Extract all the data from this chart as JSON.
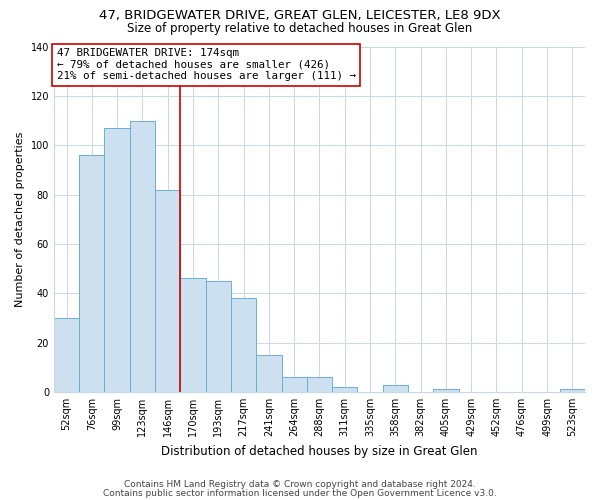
{
  "title": "47, BRIDGEWATER DRIVE, GREAT GLEN, LEICESTER, LE8 9DX",
  "subtitle": "Size of property relative to detached houses in Great Glen",
  "xlabel": "Distribution of detached houses by size in Great Glen",
  "ylabel": "Number of detached properties",
  "bar_labels": [
    "52sqm",
    "76sqm",
    "99sqm",
    "123sqm",
    "146sqm",
    "170sqm",
    "193sqm",
    "217sqm",
    "241sqm",
    "264sqm",
    "288sqm",
    "311sqm",
    "335sqm",
    "358sqm",
    "382sqm",
    "405sqm",
    "429sqm",
    "452sqm",
    "476sqm",
    "499sqm",
    "523sqm"
  ],
  "bar_values": [
    30,
    96,
    107,
    110,
    82,
    46,
    45,
    38,
    15,
    6,
    6,
    2,
    0,
    3,
    0,
    1,
    0,
    0,
    0,
    0,
    1
  ],
  "bar_color": "#cce0f0",
  "bar_edge_color": "#6baed6",
  "vline_color": "#cc0000",
  "vline_index": 4.5,
  "annotation_title": "47 BRIDGEWATER DRIVE: 174sqm",
  "annotation_line1": "← 79% of detached houses are smaller (426)",
  "annotation_line2": "21% of semi-detached houses are larger (111) →",
  "annotation_box_color": "#ffffff",
  "annotation_box_edge": "#cc0000",
  "ylim": [
    0,
    140
  ],
  "yticks": [
    0,
    20,
    40,
    60,
    80,
    100,
    120,
    140
  ],
  "footer1": "Contains HM Land Registry data © Crown copyright and database right 2024.",
  "footer2": "Contains public sector information licensed under the Open Government Licence v3.0.",
  "bg_color": "#ffffff",
  "grid_color": "#c8d8e8",
  "title_fontsize": 9.5,
  "subtitle_fontsize": 8.5,
  "xlabel_fontsize": 8.5,
  "ylabel_fontsize": 8,
  "tick_fontsize": 7,
  "annotation_fontsize": 7.8,
  "footer_fontsize": 6.5
}
